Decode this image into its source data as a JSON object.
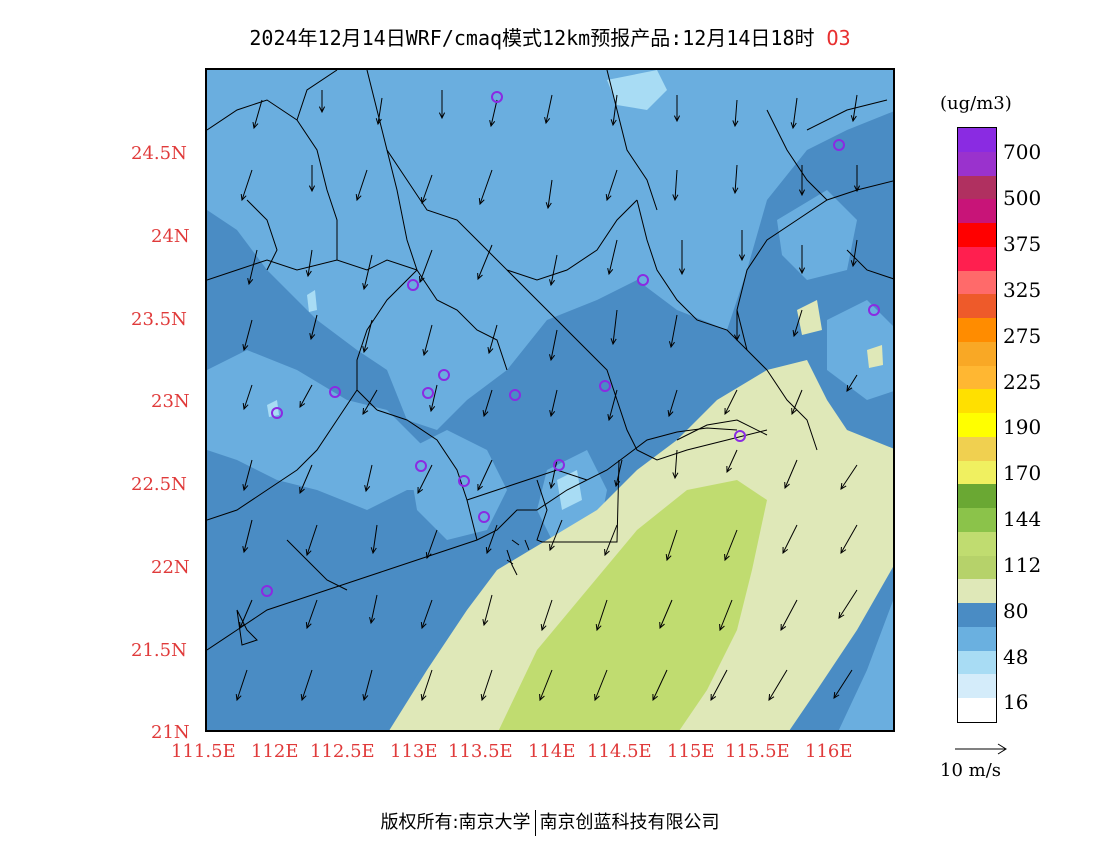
{
  "title": {
    "main": "2024年12月14日WRF/cmaq模式12km预报产品:12月14日18时",
    "species": "O3"
  },
  "axes": {
    "y_ticks": [
      "24.5N",
      "24N",
      "23.5N",
      "23N",
      "22.5N",
      "22N",
      "21.5N",
      "21N"
    ],
    "x_ticks": [
      "111.5E",
      "112E",
      "112.5E",
      "113E",
      "113.5E",
      "114E",
      "114.5E",
      "115E",
      "115.5E",
      "116E"
    ]
  },
  "colorbar": {
    "unit": "(ug/m3)",
    "labels": [
      "700",
      "500",
      "375",
      "325",
      "275",
      "225",
      "190",
      "170",
      "144",
      "112",
      "80",
      "48",
      "16"
    ],
    "colors": [
      "#8a2be2",
      "#9a32cd",
      "#b03060",
      "#c81478",
      "#ff0000",
      "#ff1f4f",
      "#ff6a6a",
      "#ee5a2a",
      "#ff8c00",
      "#f9a825",
      "#ffb732",
      "#ffe000",
      "#ffff00",
      "#f0d050",
      "#f0f060",
      "#6aa833",
      "#8bc34a",
      "#c0dc70",
      "#b6d26a",
      "#dfe8b8",
      "#4a8cc4",
      "#6ab0e0",
      "#a8dcf4",
      "#d4ecfa",
      "#ffffff"
    ]
  },
  "wind_reference": {
    "label": "10 m/s"
  },
  "footer": {
    "left": "版权所有:南京大学",
    "right": "南京创蓝科技有限公司"
  }
}
